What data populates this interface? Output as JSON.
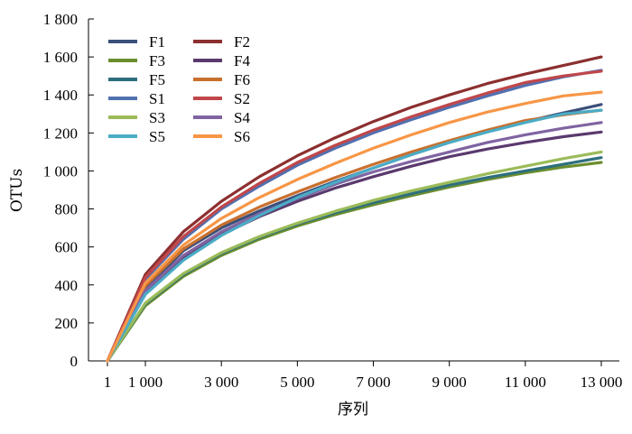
{
  "chart_data": {
    "type": "line",
    "title": "",
    "xlabel": "序列",
    "ylabel": "OTUs",
    "x": [
      1,
      1000,
      2000,
      3000,
      4000,
      5000,
      6000,
      7000,
      8000,
      9000,
      10000,
      11000,
      12000,
      13000
    ],
    "xlim": [
      1,
      13000
    ],
    "ylim": [
      0,
      1800
    ],
    "x_ticks": [
      1,
      1000,
      3000,
      5000,
      7000,
      9000,
      11000,
      13000
    ],
    "x_tick_labels": [
      "1",
      "1 000",
      "3 000",
      "5 000",
      "7 000",
      "9 000",
      "11 000",
      "13 000"
    ],
    "y_ticks": [
      0,
      200,
      400,
      600,
      800,
      1000,
      1200,
      1400,
      1600,
      1800
    ],
    "y_tick_labels": [
      "0",
      "200",
      "400",
      "600",
      "800",
      "1 000",
      "1 200",
      "1 400",
      "1 600",
      "1 800"
    ],
    "grid": false,
    "legend_position": "top-left",
    "series": [
      {
        "name": "F1",
        "color": "#3a4f7a",
        "values": [
          0,
          380,
          580,
          700,
          790,
          870,
          945,
          1015,
          1085,
          1150,
          1210,
          1260,
          1305,
          1350
        ]
      },
      {
        "name": "F2",
        "color": "#8c2f2f",
        "values": [
          0,
          455,
          680,
          840,
          970,
          1080,
          1175,
          1260,
          1335,
          1400,
          1460,
          1510,
          1555,
          1600
        ]
      },
      {
        "name": "F3",
        "color": "#6b8e2e",
        "values": [
          0,
          290,
          445,
          555,
          640,
          710,
          770,
          822,
          870,
          915,
          955,
          990,
          1020,
          1045
        ]
      },
      {
        "name": "F4",
        "color": "#5a3a6e",
        "values": [
          0,
          360,
          545,
          665,
          760,
          840,
          910,
          970,
          1025,
          1075,
          1115,
          1150,
          1180,
          1205
        ]
      },
      {
        "name": "F5",
        "color": "#2e6f7e",
        "values": [
          0,
          300,
          455,
          565,
          650,
          720,
          780,
          833,
          880,
          925,
          965,
          1000,
          1035,
          1070
        ]
      },
      {
        "name": "F6",
        "color": "#c8702e",
        "values": [
          0,
          395,
          590,
          715,
          810,
          890,
          965,
          1035,
          1100,
          1160,
          1215,
          1265,
          1295,
          1320
        ]
      },
      {
        "name": "S1",
        "color": "#5170b0",
        "values": [
          0,
          430,
          640,
          800,
          920,
          1030,
          1120,
          1200,
          1270,
          1335,
          1395,
          1450,
          1495,
          1530
        ]
      },
      {
        "name": "S2",
        "color": "#c0474a",
        "values": [
          0,
          440,
          655,
          810,
          935,
          1045,
          1135,
          1215,
          1285,
          1350,
          1410,
          1465,
          1500,
          1525
        ]
      },
      {
        "name": "S3",
        "color": "#9bbb59",
        "values": [
          0,
          305,
          460,
          570,
          655,
          725,
          788,
          845,
          895,
          940,
          985,
          1025,
          1065,
          1100
        ]
      },
      {
        "name": "S4",
        "color": "#8064a2",
        "values": [
          0,
          370,
          555,
          680,
          775,
          855,
          930,
          995,
          1050,
          1100,
          1150,
          1190,
          1225,
          1255
        ]
      },
      {
        "name": "S5",
        "color": "#4bacc6",
        "values": [
          0,
          350,
          530,
          660,
          765,
          860,
          940,
          1015,
          1085,
          1150,
          1205,
          1255,
          1300,
          1320
        ]
      },
      {
        "name": "S6",
        "color": "#f79646",
        "values": [
          0,
          410,
          610,
          750,
          860,
          955,
          1040,
          1120,
          1190,
          1255,
          1310,
          1355,
          1395,
          1415
        ]
      }
    ]
  }
}
